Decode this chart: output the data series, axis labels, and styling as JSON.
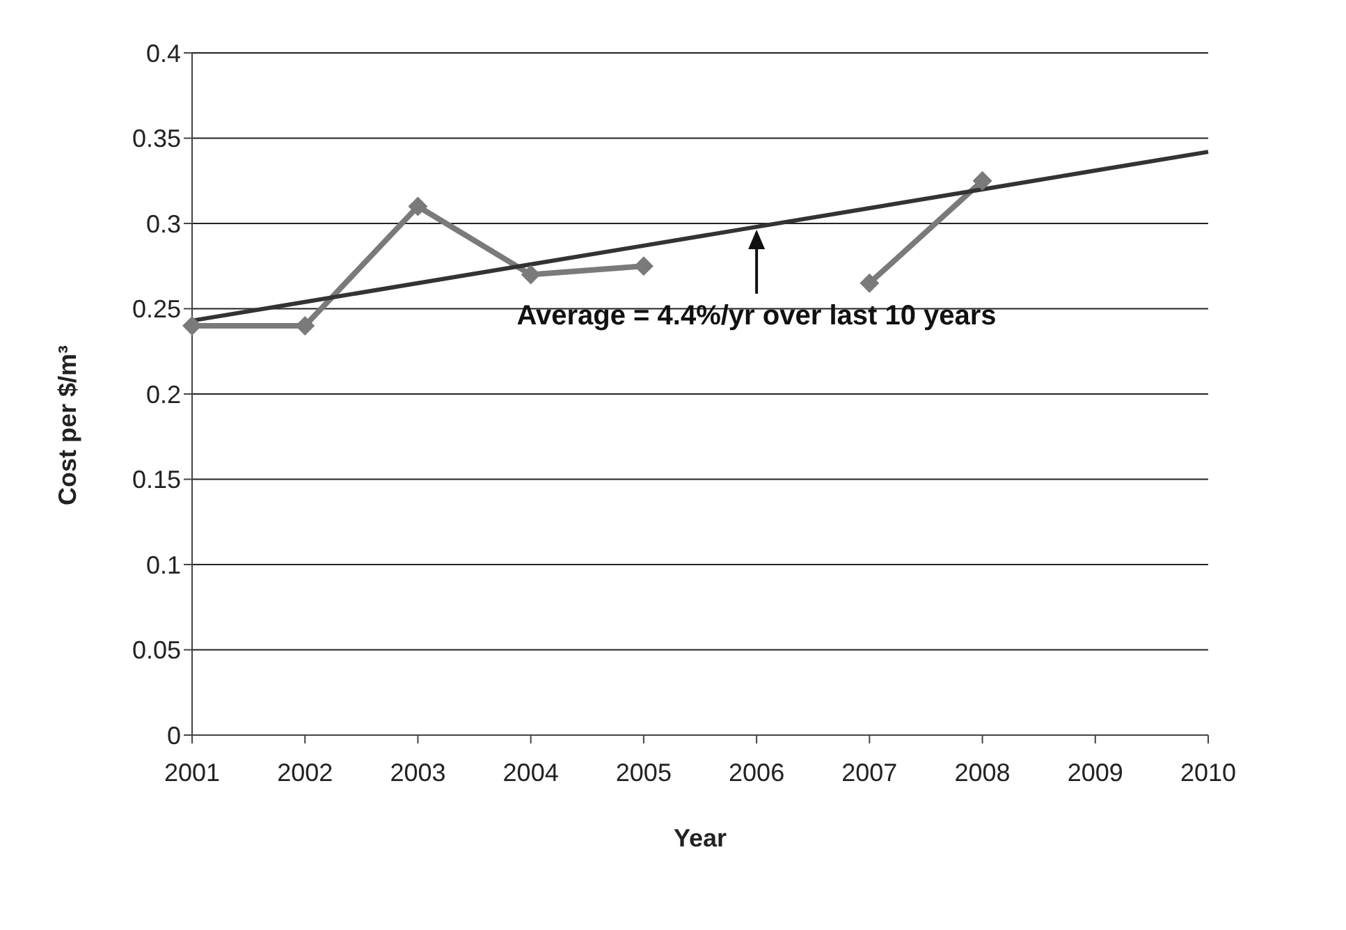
{
  "chart_data": {
    "type": "line",
    "xlabel": "Year",
    "ylabel": "Cost per $/m³",
    "categories": [
      "2001",
      "2002",
      "2003",
      "2004",
      "2005",
      "2006",
      "2007",
      "2008",
      "2009",
      "2010"
    ],
    "series": [
      {
        "color": "#7a7a7a",
        "marker": "diamond",
        "values": [
          0.24,
          0.24,
          0.31,
          0.27,
          0.275,
          null,
          0.265,
          0.325,
          null,
          null
        ]
      },
      {
        "type": "line",
        "color": "#333333",
        "marker": "none",
        "values": [
          0.243,
          0.254,
          0.265,
          0.276,
          0.287,
          0.298,
          0.309,
          0.32,
          0.331,
          0.342
        ]
      }
    ],
    "ylim": [
      0,
      0.4
    ],
    "yticks": [
      0,
      0.05,
      0.1,
      0.15,
      0.2,
      0.25,
      0.3,
      0.35,
      0.4
    ],
    "grid": "y",
    "legend": false,
    "annotations": [
      {
        "text": "Average = 4.4%/yr over last 10 years",
        "x": "2006",
        "y": 0.298
      }
    ]
  }
}
